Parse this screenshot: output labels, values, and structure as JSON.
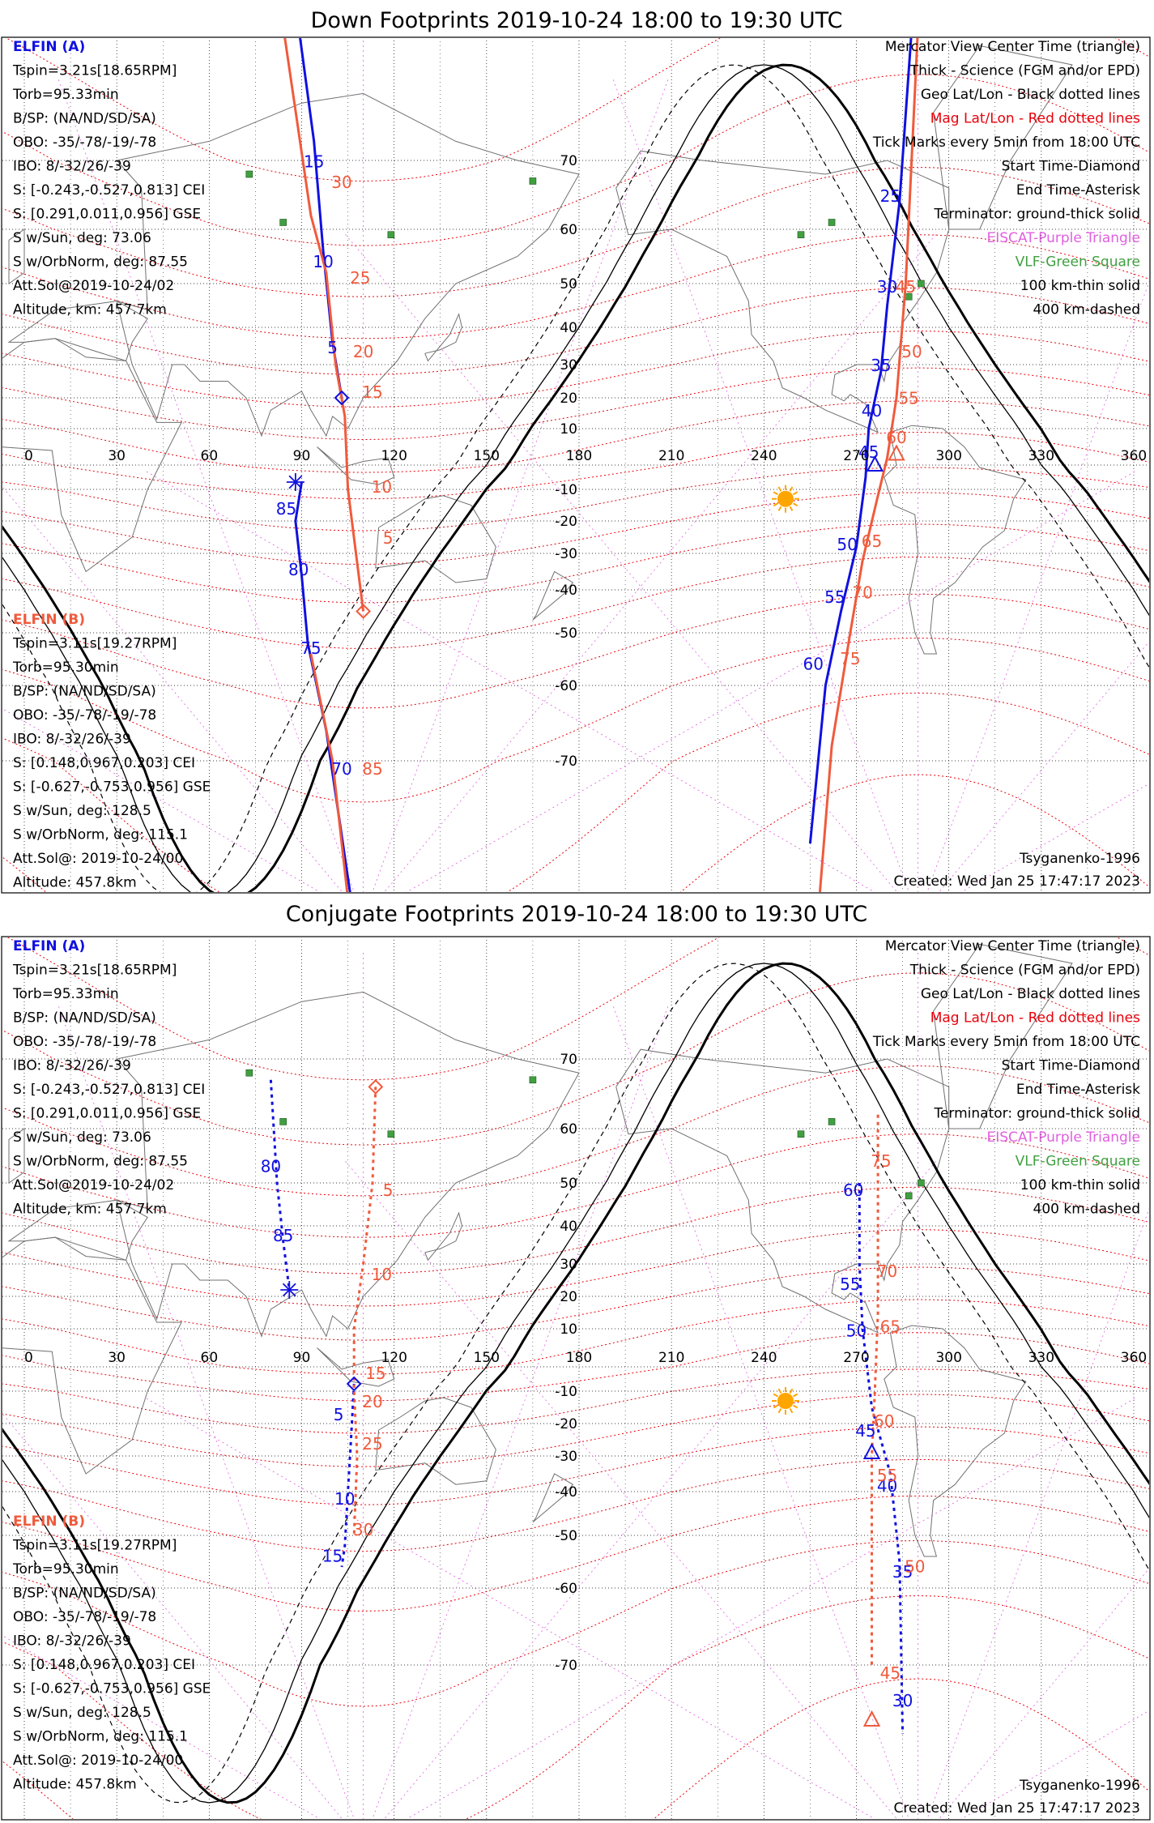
{
  "colors": {
    "elfin_a": "#1010e0",
    "elfin_b": "#f05a3c",
    "mag_grid": "#e8000a",
    "geo_grid": "#000000",
    "gcm": "#e060e0",
    "vlf": "#40a040",
    "sun": "#ffa500",
    "coast": "#707070"
  },
  "panels": [
    {
      "title": "Down Footprints 2019-10-24 18:00 to 19:30 UTC",
      "elfin_a": {
        "label": "ELFIN (A)",
        "lines": [
          "Tspin=3.21s[18.65RPM]",
          "Torb=95.33min",
          "B/SP: (NA/ND/SD/SA)",
          "OBO: -35/-78/-19/-78",
          "IBO: 8/-32/26/-39",
          "S: [-0.243,-0.527,0.813] CEI",
          "S: [0.291,0.011,0.956] GSE",
          "S w/Sun, deg: 73.06",
          "S w/OrbNorm, deg: 87.55",
          "Att.Sol@2019-10-24/02",
          "Altitude, km: 457.7km"
        ]
      },
      "elfin_b": {
        "label": "ELFIN (B)",
        "lines": [
          "Tspin=3.11s[19.27RPM]",
          "Torb=95.30min",
          "B/SP: (NA/ND/SD/SA)",
          "OBO: -35/-78/-19/-78",
          "IBO: 8/-32/26/-39",
          "S: [0.148,0.967,0.203] CEI",
          "S: [-0.627,-0.753,0.956] GSE",
          "S w/Sun, deg: 128.5",
          "S w/OrbNorm, deg: 115.1",
          "Att.Sol@: 2019-10-24/00",
          "Altitude: 457.8km"
        ]
      },
      "legend": [
        "Mercator View Center Time (triangle)",
        "Thick - Science (FGM and/or EPD)",
        "Geo Lat/Lon - Black dotted lines",
        "Mag Lat/Lon - Red dotted lines",
        "Tick Marks every 5min from 18:00 UTC",
        "Start Time-Diamond",
        "End Time-Asterisk",
        "Terminator: ground-thick solid",
        "EISCAT-Purple Triangle",
        "VLF-Green Square",
        "100 km-thin solid",
        "400 km-dashed"
      ],
      "model": "Tsyganenko-1996",
      "created": "Created: Wed Jan 25 17:47:17 2023"
    },
    {
      "title": "Conjugate Footprints 2019-10-24 18:00 to 19:30 UTC",
      "elfin_a": {
        "label": "ELFIN (A)",
        "lines": [
          "Tspin=3.21s[18.65RPM]",
          "Torb=95.33min",
          "B/SP: (NA/ND/SD/SA)",
          "OBO: -35/-78/-19/-78",
          "IBO: 8/-32/26/-39",
          "S: [-0.243,-0.527,0.813] CEI",
          "S: [0.291,0.011,0.956] GSE",
          "S w/Sun, deg: 73.06",
          "S w/OrbNorm, deg: 87.55",
          "Att.Sol@2019-10-24/02",
          "Altitude, km: 457.7km"
        ]
      },
      "elfin_b": {
        "label": "ELFIN (B)",
        "lines": [
          "Tspin=3.11s[19.27RPM]",
          "Torb=95.30min",
          "B/SP: (NA/ND/SD/SA)",
          "OBO: -35/-78/-19/-78",
          "IBO: 8/-32/26/-39",
          "S: [0.148,0.967,0.203] CEI",
          "S: [-0.627,-0.753,0.956] GSE",
          "S w/Sun, deg: 128.5",
          "S w/OrbNorm, deg: 115.1",
          "Att.Sol@: 2019-10-24/00",
          "Altitude: 457.8km"
        ]
      },
      "legend": [
        "Mercator View Center Time (triangle)",
        "Thick - Science (FGM and/or EPD)",
        "Geo Lat/Lon - Black dotted lines",
        "Mag Lat/Lon - Red dotted lines",
        "Tick Marks every 5min from 18:00 UTC",
        "Start Time-Diamond",
        "End Time-Asterisk",
        "Terminator: ground-thick solid",
        "EISCAT-Purple Triangle",
        "VLF-Green Square",
        "100 km-thin solid",
        "400 km-dashed"
      ],
      "model": "Tsyganenko-1996",
      "created": "Created: Wed Jan 25 17:47:17 2023"
    }
  ],
  "map": {
    "lon_labels": [
      "0",
      "30",
      "60",
      "90",
      "120",
      "150",
      "180",
      "210",
      "240",
      "270",
      "300",
      "330",
      "360"
    ],
    "lat_labels": [
      "70",
      "60",
      "50",
      "40",
      "30",
      "20",
      "10",
      "-10",
      "-20",
      "-30",
      "-40",
      "-50",
      "-60",
      "-70"
    ]
  },
  "ticks": {
    "down_a": [
      {
        "t": "15",
        "lon": 94,
        "lat": 69
      },
      {
        "t": "10",
        "lon": 97,
        "lat": 53
      },
      {
        "t": "5",
        "lon": 100,
        "lat": 33
      },
      {
        "t": "85",
        "lon": 85,
        "lat": -18
      },
      {
        "t": "80",
        "lon": 89,
        "lat": -36
      },
      {
        "t": "75",
        "lon": 93,
        "lat": -54
      },
      {
        "t": "70",
        "lon": 103,
        "lat": -71
      },
      {
        "t": "25",
        "lon": 281,
        "lat": 64
      },
      {
        "t": "30",
        "lon": 280,
        "lat": 48
      },
      {
        "t": "35",
        "lon": 278,
        "lat": 28
      },
      {
        "t": "40",
        "lon": 275,
        "lat": 14
      },
      {
        "t": "45",
        "lon": 274,
        "lat": 2
      },
      {
        "t": "50",
        "lon": 267,
        "lat": -29
      },
      {
        "t": "55",
        "lon": 263,
        "lat": -43
      },
      {
        "t": "60",
        "lon": 256,
        "lat": -57
      }
    ],
    "down_b": [
      {
        "t": "30",
        "lon": 103,
        "lat": 66
      },
      {
        "t": "25",
        "lon": 109,
        "lat": 50
      },
      {
        "t": "20",
        "lon": 110,
        "lat": 32
      },
      {
        "t": "15",
        "lon": 113,
        "lat": 20
      },
      {
        "t": "10",
        "lon": 116,
        "lat": -11
      },
      {
        "t": "5",
        "lon": 118,
        "lat": -27
      },
      {
        "t": "85",
        "lon": 113,
        "lat": -71
      },
      {
        "t": "45",
        "lon": 286,
        "lat": 48
      },
      {
        "t": "50",
        "lon": 288,
        "lat": 32
      },
      {
        "t": "55",
        "lon": 287,
        "lat": 18
      },
      {
        "t": "60",
        "lon": 283,
        "lat": 6
      },
      {
        "t": "65",
        "lon": 275,
        "lat": -28
      },
      {
        "t": "70",
        "lon": 272,
        "lat": -42
      },
      {
        "t": "75",
        "lon": 268,
        "lat": -56
      }
    ],
    "conj_a": [
      {
        "t": "80",
        "lon": 80,
        "lat": 52
      },
      {
        "t": "85",
        "lon": 84,
        "lat": 36
      },
      {
        "t": "5",
        "lon": 102,
        "lat": -19
      },
      {
        "t": "10",
        "lon": 104,
        "lat": -43
      },
      {
        "t": "15",
        "lon": 100,
        "lat": -55
      },
      {
        "t": "60",
        "lon": 269,
        "lat": 47
      },
      {
        "t": "55",
        "lon": 268,
        "lat": 22
      },
      {
        "t": "50",
        "lon": 270,
        "lat": 8
      },
      {
        "t": "45",
        "lon": 273,
        "lat": -24
      },
      {
        "t": "40",
        "lon": 280,
        "lat": -40
      },
      {
        "t": "35",
        "lon": 285,
        "lat": -58
      },
      {
        "t": "30",
        "lon": 285,
        "lat": -73
      }
    ],
    "conj_b": [
      {
        "t": "5",
        "lon": 118,
        "lat": 47
      },
      {
        "t": "10",
        "lon": 116,
        "lat": 25
      },
      {
        "t": "15",
        "lon": 114,
        "lat": -5
      },
      {
        "t": "20",
        "lon": 113,
        "lat": -15
      },
      {
        "t": "25",
        "lon": 113,
        "lat": -28
      },
      {
        "t": "30",
        "lon": 110,
        "lat": -50
      },
      {
        "t": "75",
        "lon": 278,
        "lat": 53
      },
      {
        "t": "70",
        "lon": 280,
        "lat": 26
      },
      {
        "t": "65",
        "lon": 281,
        "lat": 9
      },
      {
        "t": "60",
        "lon": 279,
        "lat": -21
      },
      {
        "t": "55",
        "lon": 280,
        "lat": -37
      },
      {
        "t": "50",
        "lon": 289,
        "lat": -57
      },
      {
        "t": "45",
        "lon": 281,
        "lat": -71
      }
    ]
  }
}
